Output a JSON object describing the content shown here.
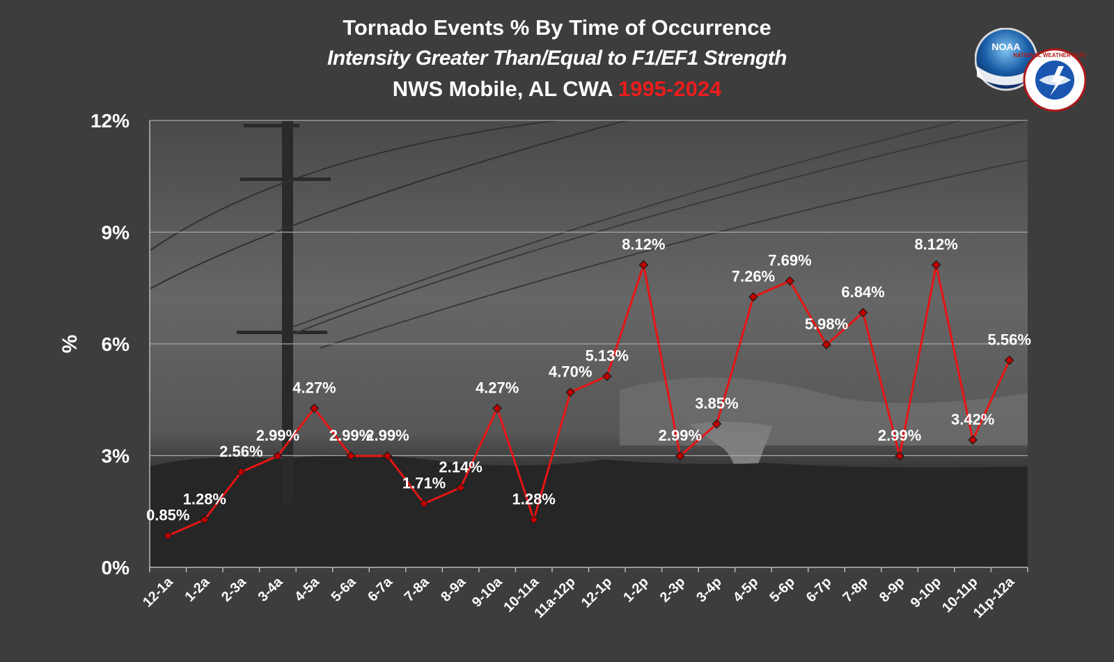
{
  "title": {
    "line1": "Tornado Events % By Time of Occurrence",
    "line2": "Intensity Greater Than/Equal to F1/EF1 Strength",
    "line3_prefix": "NWS Mobile, AL CWA",
    "line3_years": "1995-2024"
  },
  "logos": {
    "noaa_text": "NOAA",
    "nws_text": "NATIONAL WEATHER SERVICE"
  },
  "colors": {
    "background": "#3d3d3d",
    "line": "#e81414",
    "marker": "#c00000",
    "years_accent": "#ee1c1c",
    "text": "#ffffff"
  },
  "chart_data": {
    "type": "line",
    "title": "Tornado Events % By Time of Occurrence",
    "xlabel": "",
    "ylabel": "%",
    "ylim": [
      0,
      12
    ],
    "yticks": [
      0,
      3,
      6,
      9,
      12
    ],
    "ytick_labels": [
      "0%",
      "3%",
      "6%",
      "9%",
      "12%"
    ],
    "grid": true,
    "categories": [
      "12-1a",
      "1-2a",
      "2-3a",
      "3-4a",
      "4-5a",
      "5-6a",
      "6-7a",
      "7-8a",
      "8-9a",
      "9-10a",
      "10-11a",
      "11a-12p",
      "12-1p",
      "1-2p",
      "2-3p",
      "3-4p",
      "4-5p",
      "5-6p",
      "6-7p",
      "7-8p",
      "8-9p",
      "9-10p",
      "10-11p",
      "11p-12a"
    ],
    "values": [
      0.85,
      1.28,
      2.56,
      2.99,
      4.27,
      2.99,
      2.99,
      1.71,
      2.14,
      4.27,
      1.28,
      4.7,
      5.13,
      8.12,
      2.99,
      3.85,
      7.26,
      7.69,
      5.98,
      6.84,
      2.99,
      8.12,
      3.42,
      5.56
    ],
    "data_labels": [
      "0.85%",
      "1.28%",
      "2.56%",
      "2.99%",
      "4.27%",
      "2.99%",
      "2.99%",
      "1.71%",
      "2.14%",
      "4.27%",
      "1.28%",
      "4.70%",
      "5.13%",
      "8.12%",
      "2.99%",
      "3.85%",
      "7.26%",
      "7.69%",
      "5.98%",
      "6.84%",
      "2.99%",
      "8.12%",
      "3.42%",
      "5.56%"
    ]
  }
}
